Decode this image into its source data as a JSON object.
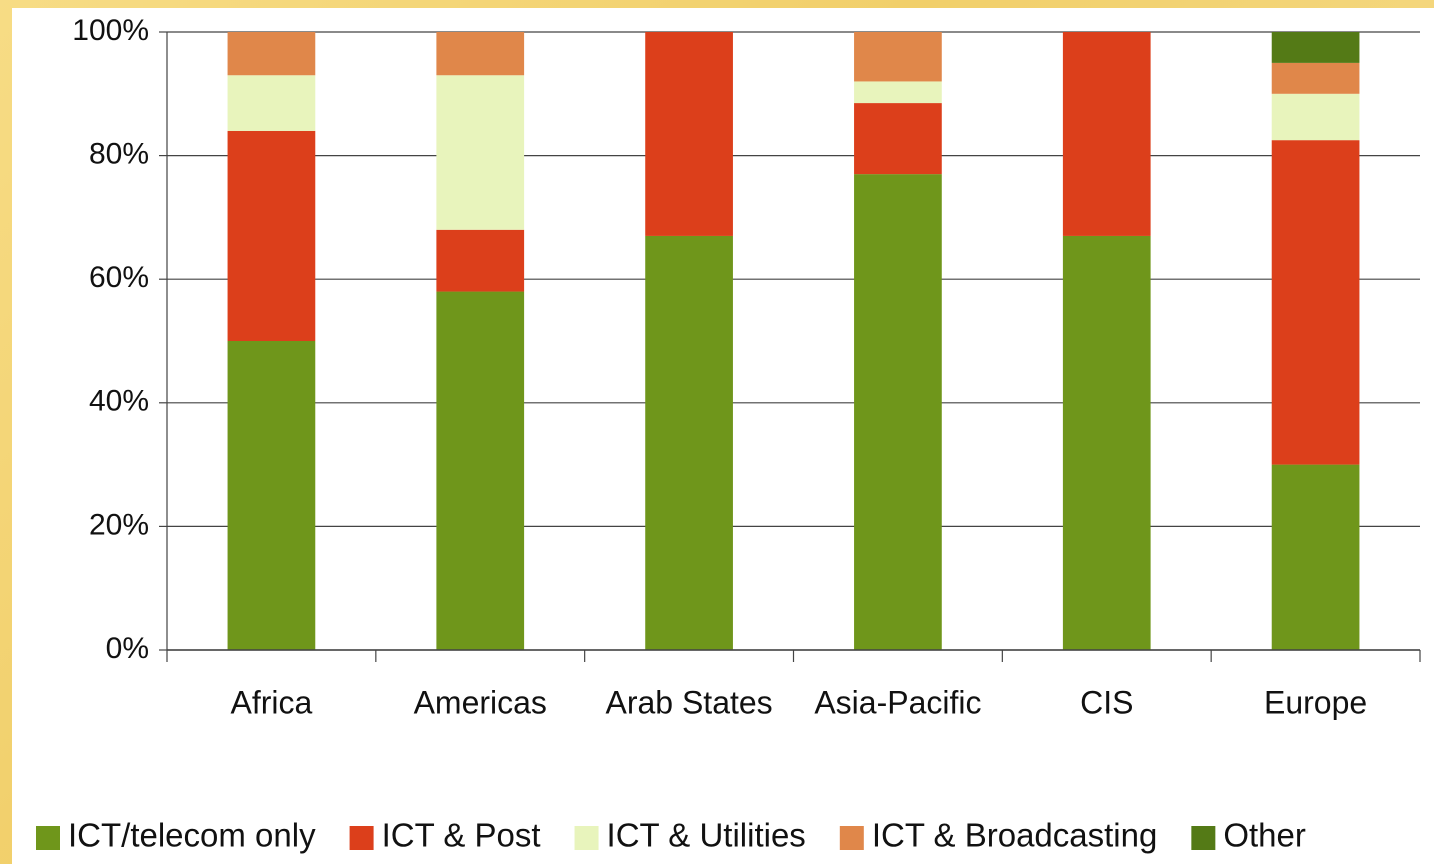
{
  "chart_data": {
    "type": "stacked_bar",
    "categories": [
      "Africa",
      "Americas",
      "Arab States",
      "Asia-Pacific",
      "CIS",
      "Europe"
    ],
    "series": [
      {
        "name": "ICT/telecom only",
        "color": "#6f961b",
        "values": [
          50,
          58,
          67,
          77,
          67,
          30
        ]
      },
      {
        "name": "ICT & Post",
        "color": "#dc3f1b",
        "values": [
          34,
          10,
          33,
          11.5,
          33,
          52.5
        ]
      },
      {
        "name": "ICT & Utilities",
        "color": "#e8f4bc",
        "values": [
          9,
          25,
          0,
          3.5,
          0,
          7.5
        ]
      },
      {
        "name": "ICT & Broadcasting",
        "color": "#e0874a",
        "values": [
          7,
          7,
          0,
          8,
          0,
          5
        ]
      },
      {
        "name": "Other",
        "color": "#547a16",
        "values": [
          0,
          0,
          0,
          0,
          0,
          5
        ]
      }
    ],
    "ylim": [
      0,
      100
    ],
    "yticks": [
      {
        "value": 0,
        "label": "0%"
      },
      {
        "value": 20,
        "label": "20%"
      },
      {
        "value": 40,
        "label": "40%"
      },
      {
        "value": 60,
        "label": "60%"
      },
      {
        "value": 80,
        "label": "80%"
      },
      {
        "value": 100,
        "label": "100%"
      }
    ],
    "grid": true,
    "legend": "bottom"
  }
}
